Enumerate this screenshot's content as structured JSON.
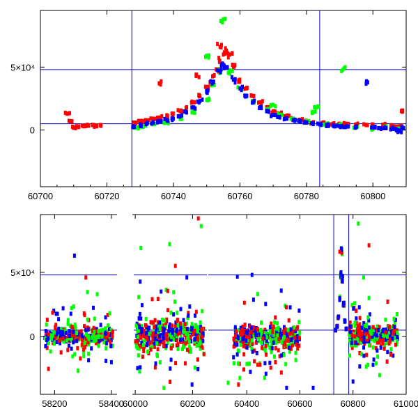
{
  "colors": {
    "red": "#ff0000",
    "green": "#00ff00",
    "blue": "#0000ff",
    "frame": "#000000",
    "guide": "#0000cc"
  },
  "chart_data": [
    {
      "type": "scatter",
      "title": "",
      "xlabel": "",
      "ylabel": "",
      "xlim": [
        60700,
        60810
      ],
      "ylim": [
        -45000,
        95000
      ],
      "x_ticks": [
        {
          "value": 60700,
          "label": "60700"
        },
        {
          "value": 60720,
          "label": "60720"
        },
        {
          "value": 60740,
          "label": "60740"
        },
        {
          "value": 60760,
          "label": "60760"
        },
        {
          "value": 60780,
          "label": "60780"
        },
        {
          "value": 60800,
          "label": "60800"
        }
      ],
      "y_ticks": [
        {
          "value": 0,
          "label": "0"
        },
        {
          "value": 50000,
          "label": "5×10⁴"
        }
      ],
      "hlines": [
        5000,
        48000
      ],
      "vlines": [
        60727.5,
        60784
      ],
      "series": [
        {
          "name": "red",
          "color": "#ff0000",
          "points": [
            [
              60708,
              13000
            ],
            [
              60709,
              7000
            ],
            [
              60710,
              2000
            ],
            [
              60711,
              3000
            ],
            [
              60713,
              3000
            ],
            [
              60714,
              4000
            ],
            [
              60716,
              4000
            ],
            [
              60717,
              3000
            ],
            [
              60718,
              4000
            ],
            [
              60728,
              6000
            ],
            [
              60730,
              7000
            ],
            [
              60732,
              7500
            ],
            [
              60734,
              9000
            ],
            [
              60736,
              10000
            ],
            [
              60738,
              11000
            ],
            [
              60740,
              13000
            ],
            [
              60742,
              15000
            ],
            [
              60744,
              18000
            ],
            [
              60746,
              22000
            ],
            [
              60748,
              27000
            ],
            [
              60750,
              34000
            ],
            [
              60751,
              38000
            ],
            [
              60752,
              43000
            ],
            [
              60753,
              48000
            ],
            [
              60754,
              55000
            ],
            [
              60755,
              60000
            ],
            [
              60756,
              63000
            ],
            [
              60757,
              60000
            ],
            [
              60758,
              50000
            ],
            [
              60760,
              40000
            ],
            [
              60762,
              33000
            ],
            [
              60764,
              27000
            ],
            [
              60766,
              22000
            ],
            [
              60768,
              18000
            ],
            [
              60770,
              15000
            ],
            [
              60772,
              13000
            ],
            [
              60774,
              11000
            ],
            [
              60776,
              9000
            ],
            [
              60778,
              8000
            ],
            [
              60780,
              7000
            ],
            [
              60782,
              6000
            ],
            [
              60785,
              6000
            ],
            [
              60788,
              5000
            ],
            [
              60790,
              5000
            ],
            [
              60792,
              5000
            ],
            [
              60795,
              4500
            ],
            [
              60798,
              4000
            ],
            [
              60800,
              4000
            ],
            [
              60803,
              4000
            ],
            [
              60806,
              3500
            ],
            [
              60808,
              3000
            ],
            [
              60809,
              15000
            ],
            [
              60736,
              37000
            ],
            [
              60754,
              66000
            ],
            [
              60747,
              44000
            ]
          ]
        },
        {
          "name": "green",
          "color": "#00ff00",
          "points": [
            [
              60729,
              2000
            ],
            [
              60731,
              3000
            ],
            [
              60734,
              5000
            ],
            [
              60738,
              6000
            ],
            [
              60742,
              9000
            ],
            [
              60746,
              14000
            ],
            [
              60750,
              24000
            ],
            [
              60752,
              37000
            ],
            [
              60754,
              46000
            ],
            [
              60755,
              88000
            ],
            [
              60757,
              45000
            ],
            [
              60760,
              33000
            ],
            [
              60764,
              22000
            ],
            [
              60768,
              16000
            ],
            [
              60772,
              12000
            ],
            [
              60776,
              9000
            ],
            [
              60780,
              7000
            ],
            [
              60782,
              14000
            ],
            [
              60783,
              18000
            ],
            [
              60786,
              5000
            ],
            [
              60790,
              4000
            ],
            [
              60791,
              48000
            ],
            [
              60795,
              2000
            ],
            [
              60800,
              1000
            ],
            [
              60804,
              3000
            ],
            [
              60808,
              1000
            ],
            [
              60750,
              59000
            ],
            [
              60770,
              20000
            ]
          ]
        },
        {
          "name": "blue",
          "color": "#0000ff",
          "points": [
            [
              60728,
              3000
            ],
            [
              60730,
              4000
            ],
            [
              60732,
              5000
            ],
            [
              60734,
              6000
            ],
            [
              60736,
              7000
            ],
            [
              60738,
              8000
            ],
            [
              60740,
              9000
            ],
            [
              60742,
              11000
            ],
            [
              60744,
              14000
            ],
            [
              60746,
              18000
            ],
            [
              60748,
              23000
            ],
            [
              60750,
              30000
            ],
            [
              60752,
              38000
            ],
            [
              60754,
              47000
            ],
            [
              60755,
              52000
            ],
            [
              60756,
              50000
            ],
            [
              60758,
              40000
            ],
            [
              60760,
              33000
            ],
            [
              60762,
              27000
            ],
            [
              60764,
              22000
            ],
            [
              60766,
              18000
            ],
            [
              60768,
              15000
            ],
            [
              60770,
              12000
            ],
            [
              60772,
              10000
            ],
            [
              60774,
              9000
            ],
            [
              60776,
              8000
            ],
            [
              60778,
              7000
            ],
            [
              60780,
              6000
            ],
            [
              60782,
              5000
            ],
            [
              60784,
              4500
            ],
            [
              60786,
              4000
            ],
            [
              60788,
              3500
            ],
            [
              60790,
              3000
            ],
            [
              60792,
              3000
            ],
            [
              60795,
              2500
            ],
            [
              60798,
              38000
            ],
            [
              60800,
              2000
            ],
            [
              60802,
              1500
            ],
            [
              60804,
              1500
            ],
            [
              60806,
              1000
            ],
            [
              60807,
              0
            ],
            [
              60808,
              -1000
            ],
            [
              60809,
              2000
            ]
          ]
        }
      ]
    },
    {
      "type": "scatter",
      "title": "",
      "xlabel": "",
      "ylabel": "",
      "segments": [
        {
          "xlim": [
            58150,
            58420
          ],
          "ticks": [
            {
              "value": 58200,
              "label": "58200"
            },
            {
              "value": 58400,
              "label": "58400"
            }
          ]
        },
        {
          "xlim": [
            59990,
            60250
          ],
          "ticks": [
            {
              "value": 60000,
              "label": "60000"
            },
            {
              "value": 60200,
              "label": "60200"
            }
          ]
        },
        {
          "xlim": [
            60250,
            61000
          ],
          "ticks": [
            {
              "value": 60400,
              "label": "60400"
            },
            {
              "value": 60600,
              "label": "60600"
            },
            {
              "value": 60800,
              "label": "60800"
            },
            {
              "value": 61000,
              "label": "61000"
            }
          ]
        }
      ],
      "ylim": [
        -45000,
        95000
      ],
      "y_ticks": [
        {
          "value": 0,
          "label": "0"
        },
        {
          "value": 50000,
          "label": "5×10⁴"
        }
      ],
      "hlines": [
        5000,
        48000
      ],
      "vlines": [
        60727.5,
        60784
      ],
      "clusters": [
        {
          "x_range": [
            58165,
            58405
          ],
          "center": 0,
          "spread": 4000,
          "count": 90
        },
        {
          "x_range": [
            60000,
            60240
          ],
          "center": 1000,
          "spread": 6000,
          "count": 110
        },
        {
          "x_range": [
            60350,
            60600
          ],
          "center": 0,
          "spread": 5000,
          "count": 110
        },
        {
          "x_range": [
            60785,
            60970
          ],
          "center": 1000,
          "spread": 4000,
          "count": 90
        }
      ],
      "peak": [
        [
          60735,
          5000
        ],
        [
          60740,
          8000
        ],
        [
          60745,
          15000
        ],
        [
          60750,
          30000
        ],
        [
          60754,
          48000
        ],
        [
          60757,
          66000
        ],
        [
          60760,
          45000
        ],
        [
          60765,
          25000
        ],
        [
          60770,
          12000
        ],
        [
          60775,
          6000
        ]
      ],
      "outliers": [
        {
          "series": "blue",
          "points": [
            [
              58270,
              63000
            ],
            [
              58230,
              22000
            ],
            [
              58400,
              -20000
            ],
            [
              60020,
              14000
            ],
            [
              60180,
              46000
            ],
            [
              60420,
              48000
            ],
            [
              60650,
              -40000
            ],
            [
              60550,
              -40000
            ],
            [
              60800,
              -35000
            ],
            [
              60930,
              -12000
            ]
          ]
        },
        {
          "series": "red",
          "points": [
            [
              58310,
              46000
            ],
            [
              60220,
              92000
            ],
            [
              60140,
              55000
            ],
            [
              60860,
              71000
            ],
            [
              60750,
              66000
            ],
            [
              60450,
              -22000
            ],
            [
              60530,
              -28000
            ],
            [
              60960,
              -55000
            ]
          ]
        },
        {
          "series": "green",
          "points": [
            [
              60230,
              86000
            ],
            [
              60020,
              69000
            ],
            [
              60120,
              72000
            ],
            [
              60820,
              88000
            ],
            [
              60840,
              46000
            ],
            [
              60860,
              30000
            ],
            [
              60900,
              -30000
            ],
            [
              60330,
              -36000
            ],
            [
              60100,
              -40000
            ],
            [
              58350,
              33000
            ]
          ]
        }
      ]
    }
  ]
}
